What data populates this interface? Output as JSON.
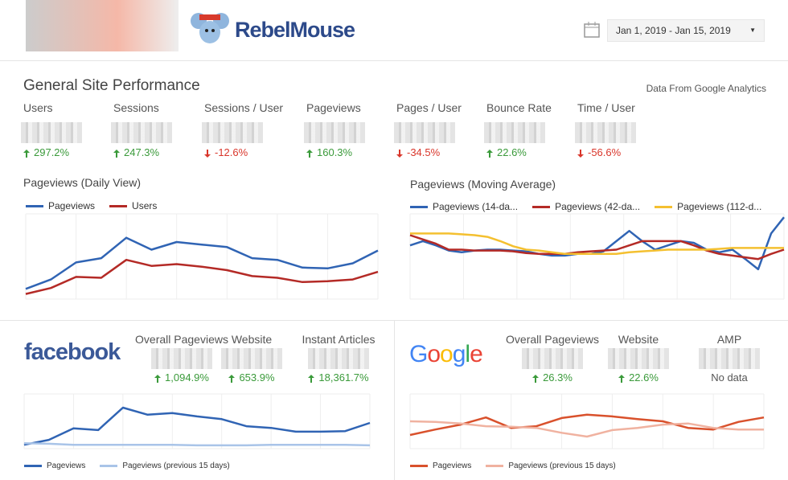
{
  "header": {
    "brand": "RebelMouse",
    "date_range": "Jan 1, 2019 - Jan 15, 2019"
  },
  "site": {
    "title": "General Site Performance",
    "source": "Data From Google Analytics",
    "metrics": [
      {
        "label": "Users",
        "change": "297.2%",
        "trend": "up"
      },
      {
        "label": "Sessions",
        "change": "247.3%",
        "trend": "up"
      },
      {
        "label": "Sessions / User",
        "change": "-12.6%",
        "trend": "down"
      },
      {
        "label": "Pageviews",
        "change": "160.3%",
        "trend": "up"
      },
      {
        "label": "Pages / User",
        "change": "-34.5%",
        "trend": "down"
      },
      {
        "label": "Bounce Rate",
        "change": "22.6%",
        "trend": "up"
      },
      {
        "label": "Time / User",
        "change": "-56.6%",
        "trend": "down"
      }
    ],
    "charts": [
      {
        "type": "line",
        "title": "Pageviews (Daily View)",
        "ylim": [
          0,
          100
        ],
        "series": [
          {
            "name": "Pageviews",
            "color": "#3064b4",
            "values": [
              12,
              23,
              43,
              48,
              72,
              58,
              67,
              64,
              61,
              48,
              46,
              37,
              36,
              42,
              57
            ]
          },
          {
            "name": "Users",
            "color": "#b42a26",
            "values": [
              6,
              13,
              26,
              25,
              46,
              39,
              41,
              38,
              34,
              27,
              25,
              20,
              21,
              23,
              32
            ]
          }
        ]
      },
      {
        "type": "line",
        "title": "Pageviews (Moving Average)",
        "ylim": [
          0,
          100
        ],
        "series": [
          {
            "name": "Pageviews (14-da...",
            "color": "#3064b4",
            "values": [
              63,
              68,
              63,
              57,
              55,
              57,
              58,
              58,
              57,
              56,
              53,
              51,
              51,
              53,
              53,
              56,
              68,
              80,
              68,
              58,
              63,
              68,
              66,
              58,
              55,
              58,
              47,
              35,
              77,
              96
            ]
          },
          {
            "name": "Pageviews (42-da...",
            "color": "#b42a26",
            "values": [
              75,
              70,
              65,
              58,
              58,
              57,
              57,
              57,
              56,
              54,
              53,
              53,
              53,
              55,
              56,
              57,
              58,
              63,
              68,
              68,
              68,
              68,
              63,
              57,
              53,
              51,
              49,
              47,
              53,
              58
            ]
          },
          {
            "name": "Pageviews (112-d...",
            "color": "#f4c030",
            "values": [
              77,
              77,
              77,
              77,
              76,
              75,
              73,
              68,
              62,
              58,
              57,
              55,
              53,
              53,
              53,
              53,
              53,
              55,
              56,
              57,
              58,
              58,
              58,
              58,
              59,
              60,
              60,
              60,
              60,
              60
            ]
          }
        ]
      }
    ]
  },
  "facebook": {
    "logo": "facebook",
    "metrics": [
      {
        "label": "Overall Pageviews",
        "change": "1,094.9%",
        "trend": "up"
      },
      {
        "label": "Website",
        "change": "653.9%",
        "trend": "up"
      },
      {
        "label": "Instant Articles",
        "change": "18,361.7%",
        "trend": "up"
      }
    ],
    "chart": {
      "type": "line",
      "ylim": [
        0,
        100
      ],
      "series": [
        {
          "name": "Pageviews",
          "color": "#3064b4",
          "values": [
            7,
            16,
            37,
            34,
            75,
            62,
            65,
            59,
            54,
            41,
            38,
            31,
            31,
            32,
            47
          ]
        },
        {
          "name": "Pageviews (previous 15 days)",
          "color": "#a9c4e8",
          "values": [
            10,
            9,
            7,
            7,
            7,
            7,
            7,
            6,
            6,
            6,
            7,
            7,
            7,
            7,
            6
          ]
        }
      ]
    }
  },
  "google": {
    "logo": "Google",
    "metrics": [
      {
        "label": "Overall Pageviews",
        "change": "26.3%",
        "trend": "up"
      },
      {
        "label": "Website",
        "change": "22.6%",
        "trend": "up"
      },
      {
        "label": "AMP",
        "change": "No data"
      }
    ],
    "chart": {
      "type": "line",
      "ylim": [
        0,
        100
      ],
      "series": [
        {
          "name": "Pageviews",
          "color": "#d9512c",
          "values": [
            25,
            35,
            44,
            57,
            38,
            41,
            56,
            62,
            59,
            54,
            50,
            38,
            35,
            49,
            57
          ]
        },
        {
          "name": "Pageviews (previous 15 days)",
          "color": "#f0b2a0",
          "values": [
            50,
            49,
            46,
            41,
            40,
            38,
            29,
            22,
            34,
            38,
            44,
            46,
            38,
            35,
            35
          ]
        }
      ]
    }
  }
}
